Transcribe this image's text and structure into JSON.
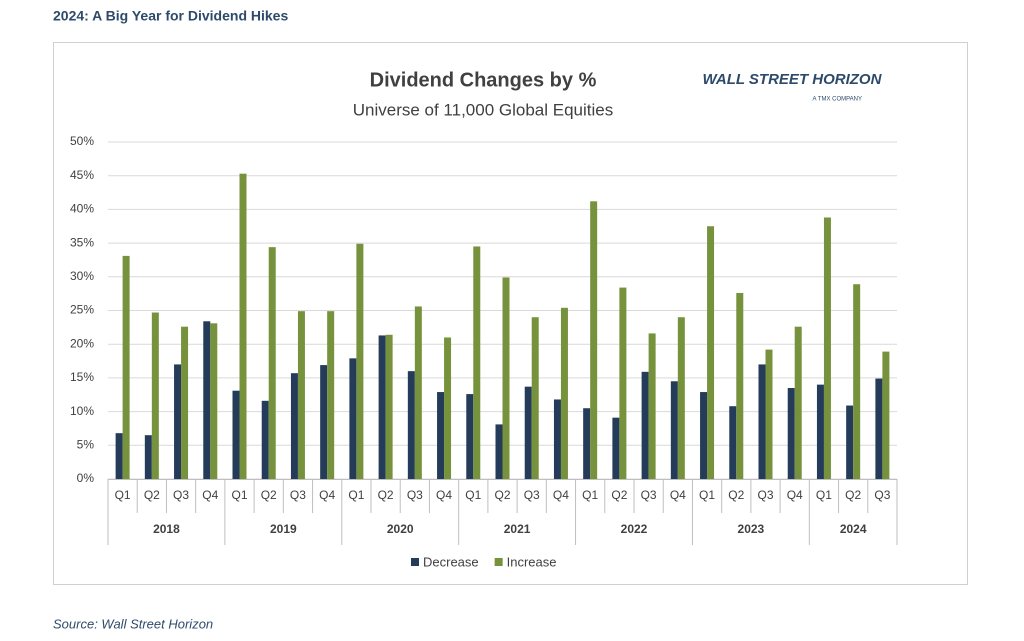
{
  "header": {
    "title": "2024: A Big Year for Dividend Hikes"
  },
  "source": "Source: Wall Street Horizon",
  "logo": {
    "name": "WALL STREET HORIZON",
    "tagline": "A TMX COMPANY"
  },
  "chart_data": {
    "type": "bar",
    "title": "Dividend Changes by %",
    "subtitle": "Universe of 11,000 Global Equities",
    "groups": [
      {
        "label": "2018",
        "quarters": [
          "Q1",
          "Q2",
          "Q3",
          "Q4"
        ]
      },
      {
        "label": "2019",
        "quarters": [
          "Q1",
          "Q2",
          "Q3",
          "Q4"
        ]
      },
      {
        "label": "2020",
        "quarters": [
          "Q1",
          "Q2",
          "Q3",
          "Q4"
        ]
      },
      {
        "label": "2021",
        "quarters": [
          "Q1",
          "Q2",
          "Q3",
          "Q4"
        ]
      },
      {
        "label": "2022",
        "quarters": [
          "Q1",
          "Q2",
          "Q3",
          "Q4"
        ]
      },
      {
        "label": "2023",
        "quarters": [
          "Q1",
          "Q2",
          "Q3",
          "Q4"
        ]
      },
      {
        "label": "2024",
        "quarters": [
          "Q1",
          "Q2",
          "Q3"
        ]
      }
    ],
    "series": [
      {
        "name": "Decrease",
        "color": "#243b5a",
        "values": [
          6.8,
          6.5,
          17.0,
          23.4,
          13.1,
          11.6,
          15.7,
          16.9,
          17.9,
          21.3,
          16.0,
          12.9,
          12.6,
          8.1,
          13.7,
          11.8,
          10.5,
          9.1,
          15.9,
          14.5,
          12.9,
          10.8,
          17.0,
          13.5,
          14.0,
          10.9,
          14.9
        ]
      },
      {
        "name": "Increase",
        "color": "#77923c",
        "values": [
          33.1,
          24.7,
          22.6,
          23.1,
          45.3,
          34.4,
          24.9,
          24.9,
          34.9,
          21.4,
          25.6,
          21.0,
          34.5,
          29.9,
          24.0,
          25.4,
          41.2,
          28.4,
          21.6,
          24.0,
          37.5,
          27.6,
          19.2,
          22.6,
          38.8,
          28.9,
          18.9
        ]
      }
    ],
    "ylim": [
      0,
      50
    ],
    "yticks": [
      {
        "value": 0,
        "label": "0%"
      },
      {
        "value": 5,
        "label": "5%"
      },
      {
        "value": 10,
        "label": "10%"
      },
      {
        "value": 15,
        "label": "15%"
      },
      {
        "value": 20,
        "label": "20%"
      },
      {
        "value": 25,
        "label": "25%"
      },
      {
        "value": 30,
        "label": "30%"
      },
      {
        "value": 35,
        "label": "35%"
      },
      {
        "value": 40,
        "label": "40%"
      },
      {
        "value": 45,
        "label": "45%"
      },
      {
        "value": 50,
        "label": "50%"
      }
    ],
    "grid": true,
    "legend": "bottom"
  }
}
